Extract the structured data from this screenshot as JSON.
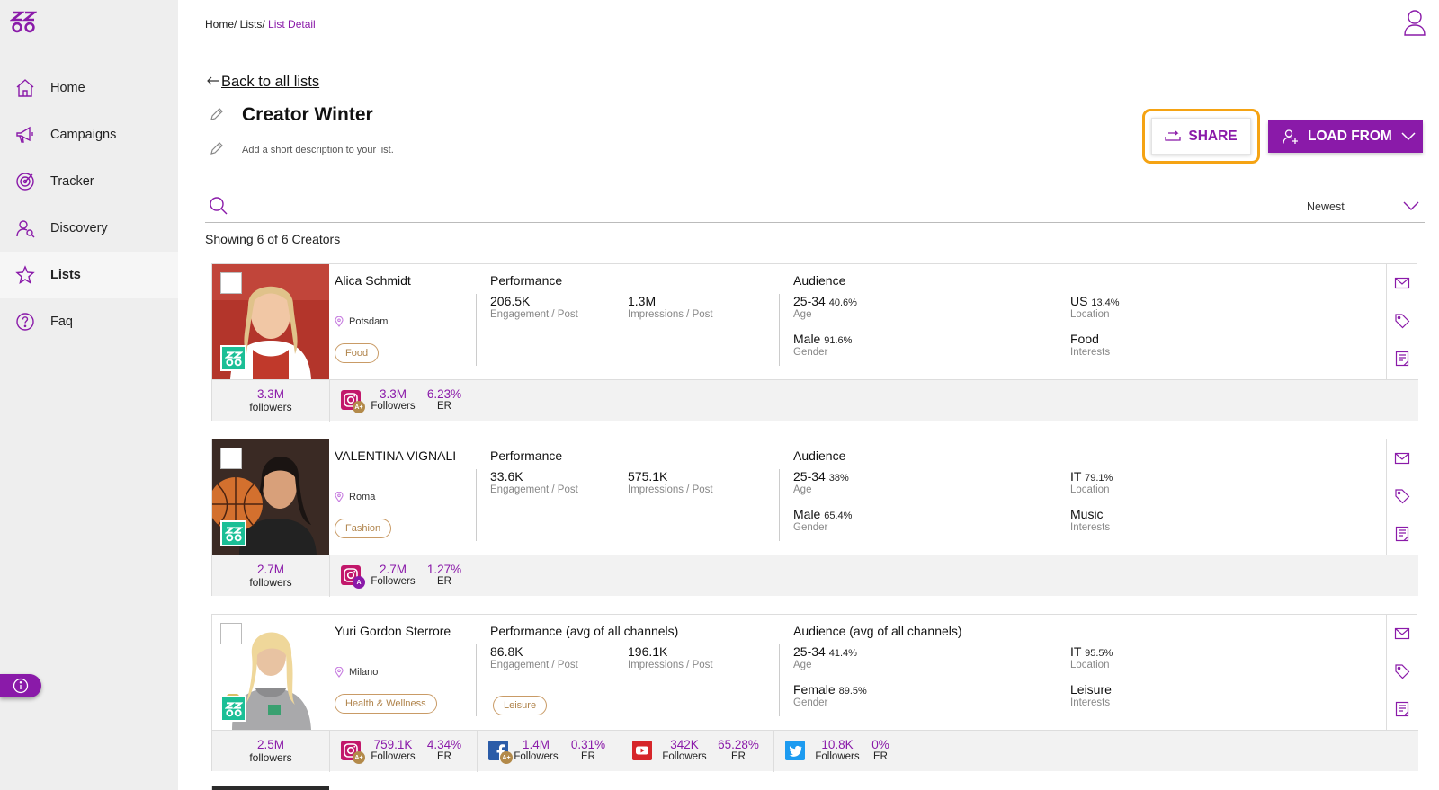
{
  "nav": {
    "items": [
      {
        "label": "Home",
        "icon": "home-icon"
      },
      {
        "label": "Campaigns",
        "icon": "megaphone-icon"
      },
      {
        "label": "Tracker",
        "icon": "target-icon"
      },
      {
        "label": "Discovery",
        "icon": "user-search-icon"
      },
      {
        "label": "Lists",
        "icon": "star-icon",
        "active": true
      },
      {
        "label": "Faq",
        "icon": "question-icon"
      }
    ]
  },
  "breadcrumb": {
    "home": "Home/",
    "lists": " Lists/",
    "current": " List Detail"
  },
  "back_label": "Back to all lists",
  "list": {
    "title": "Creator Winter",
    "description": "Add a short description to your list."
  },
  "actions": {
    "share": "SHARE",
    "load_from": "LOAD FROM"
  },
  "sort": {
    "selected": "Newest"
  },
  "showing": "Showing 6 of 6 Creators",
  "colors": {
    "accent": "#8a1aa9",
    "highlight": "#f5a313",
    "badge": "#1bbf96"
  },
  "creators": [
    {
      "name": "Alica Schmidt",
      "location": "Potsdam",
      "tags": [
        "Food"
      ],
      "performance_title": "Performance",
      "engagement": "206.5K",
      "engagement_label": "Engagement / Post",
      "impressions": "1.3M",
      "impressions_label": "Impressions / Post",
      "audience_title": "Audience",
      "age": "25-34",
      "age_pct": "40.6%",
      "age_label": "Age",
      "gender": "Male",
      "gender_pct": "91.6%",
      "gender_label": "Gender",
      "location_top": "US",
      "location_pct": "13.4%",
      "location_label": "Location",
      "interest": "Food",
      "interest_label": "Interests",
      "followers_total": "3.3M",
      "followers_word": "followers",
      "channels": [
        {
          "icon": "instagram-icon",
          "grade": "A+",
          "followers": "3.3M",
          "followers_label": "Followers",
          "er": "6.23%",
          "er_label": "ER"
        }
      ]
    },
    {
      "name": "VALENTINA VIGNALI",
      "location": "Roma",
      "tags": [
        "Fashion"
      ],
      "performance_title": "Performance",
      "engagement": "33.6K",
      "engagement_label": "Engagement / Post",
      "impressions": "575.1K",
      "impressions_label": "Impressions / Post",
      "audience_title": "Audience",
      "age": "25-34",
      "age_pct": "38%",
      "age_label": "Age",
      "gender": "Male",
      "gender_pct": "65.4%",
      "gender_label": "Gender",
      "location_top": "IT",
      "location_pct": "79.1%",
      "location_label": "Location",
      "interest": "Music",
      "interest_label": "Interests",
      "followers_total": "2.7M",
      "followers_word": "followers",
      "channels": [
        {
          "icon": "instagram-icon",
          "grade": "A",
          "followers": "2.7M",
          "followers_label": "Followers",
          "er": "1.27%",
          "er_label": "ER"
        }
      ]
    },
    {
      "name": "Yuri Gordon Sterrore",
      "location": "Milano",
      "tags": [
        "Health & Wellness",
        "Leisure"
      ],
      "performance_title": "Performance (avg of all channels)",
      "engagement": "86.8K",
      "engagement_label": "Engagement / Post",
      "impressions": "196.1K",
      "impressions_label": "Impressions / Post",
      "audience_title": "Audience (avg of all channels)",
      "age": "25-34",
      "age_pct": "41.4%",
      "age_label": "Age",
      "gender": "Female",
      "gender_pct": "89.5%",
      "gender_label": "Gender",
      "location_top": "IT",
      "location_pct": "95.5%",
      "location_label": "Location",
      "interest": "Leisure",
      "interest_label": "Interests",
      "followers_total": "2.5M",
      "followers_word": "followers",
      "channels": [
        {
          "icon": "instagram-icon",
          "grade": "A+",
          "followers": "759.1K",
          "followers_label": "Followers",
          "er": "4.34%",
          "er_label": "ER"
        },
        {
          "icon": "facebook-icon",
          "grade": "A+",
          "followers": "1.4M",
          "followers_label": "Followers",
          "er": "0.31%",
          "er_label": "ER"
        },
        {
          "icon": "youtube-icon",
          "grade": "",
          "followers": "342K",
          "followers_label": "Followers",
          "er": "65.28%",
          "er_label": "ER"
        },
        {
          "icon": "twitter-icon",
          "grade": "",
          "followers": "10.8K",
          "followers_label": "Followers",
          "er": "0%",
          "er_label": "ER"
        }
      ]
    }
  ]
}
